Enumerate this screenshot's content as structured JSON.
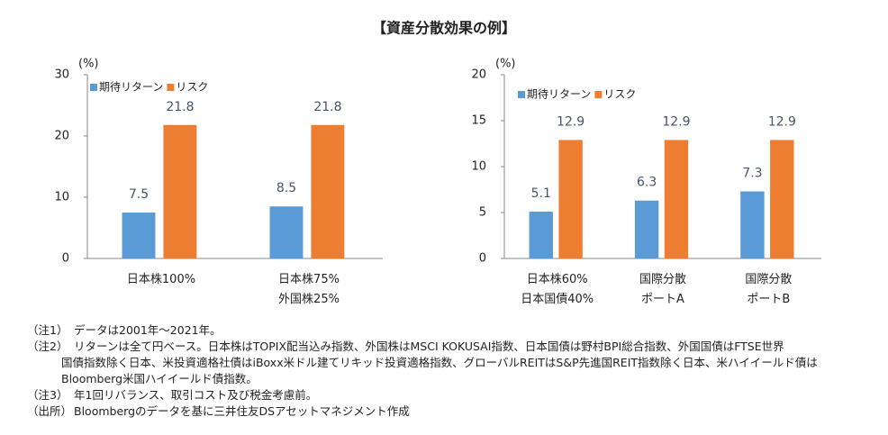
{
  "title": "【資産分散効果の例】",
  "chart_data": [
    {
      "type": "bar",
      "y_label": "(%)",
      "categories": [
        "日本株100%",
        "日本株75%\n外国株25%"
      ],
      "series": [
        {
          "name": "期待リターン",
          "color": "#5b9bd5",
          "values": [
            7.5,
            8.5
          ]
        },
        {
          "name": "リスク",
          "color": "#ed7d31",
          "values": [
            21.8,
            21.8
          ]
        }
      ],
      "ylim": [
        0,
        30
      ],
      "yticks": [
        0,
        10,
        20,
        30
      ],
      "legend": "top-left"
    },
    {
      "type": "bar",
      "y_label": "(%)",
      "categories": [
        "日本株60%\n日本国債40%",
        "国際分散\nポートA",
        "国際分散\nポートB"
      ],
      "series": [
        {
          "name": "期待リターン",
          "color": "#5b9bd5",
          "values": [
            5.1,
            6.3,
            7.3
          ]
        },
        {
          "name": "リスク",
          "color": "#ed7d31",
          "values": [
            12.9,
            12.9,
            12.9
          ]
        }
      ],
      "ylim": [
        0,
        20
      ],
      "yticks": [
        0,
        5,
        10,
        15,
        20
      ],
      "legend": "top-left"
    }
  ],
  "notes": [
    {
      "label": "（注1）",
      "lines": [
        "データは2001年～2021年。"
      ]
    },
    {
      "label": "（注2）",
      "lines": [
        "リターンは全て円ベース。日本株はTOPIX配当込み指数、外国株はMSCI  KOKUSAI指数、日本国債は野村BPI総合指数、外国国債はFTSE世界",
        "国債指数除く日本、米投資適格社債はiBoxx米ドル建てリキッド投資適格指数、グローバルREITはS&P先進国REIT指数除く日本、米ハイイールド債は",
        "Bloomberg米国ハイイールド債指数。"
      ]
    },
    {
      "label": "（注3）",
      "lines": [
        "年1回リバランス、取引コスト及び税金考慮前。"
      ]
    },
    {
      "label": "（出所）",
      "lines": [
        "Bloombergのデータを基に三井住友DSアセットマネジメント作成"
      ]
    }
  ]
}
